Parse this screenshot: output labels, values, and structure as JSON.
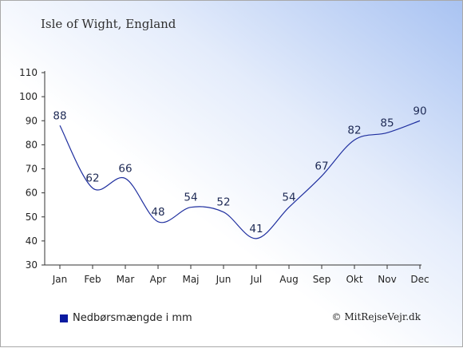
{
  "header": {
    "title": "Isle of Wight, England"
  },
  "legend": {
    "label": "Nedbørsmængde i mm"
  },
  "credit": {
    "text": "© MitRejseVejr.dk"
  },
  "colors": {
    "line": "#1f2f9f",
    "legend_swatch": "#0a1aa0",
    "axis": "#333333"
  },
  "chart_data": {
    "type": "line",
    "title": "Isle of Wight, England",
    "xlabel": "",
    "ylabel": "",
    "categories": [
      "Jan",
      "Feb",
      "Mar",
      "Apr",
      "Maj",
      "Jun",
      "Jul",
      "Aug",
      "Sep",
      "Okt",
      "Nov",
      "Dec"
    ],
    "series": [
      {
        "name": "Nedbørsmængde i mm",
        "values": [
          88,
          62,
          66,
          48,
          54,
          52,
          41,
          54,
          67,
          82,
          85,
          90
        ]
      }
    ],
    "ylim": [
      30,
      110
    ],
    "yticks": [
      30,
      40,
      50,
      60,
      70,
      80,
      90,
      100,
      110
    ],
    "grid": false,
    "legend_position": "bottom-left"
  }
}
